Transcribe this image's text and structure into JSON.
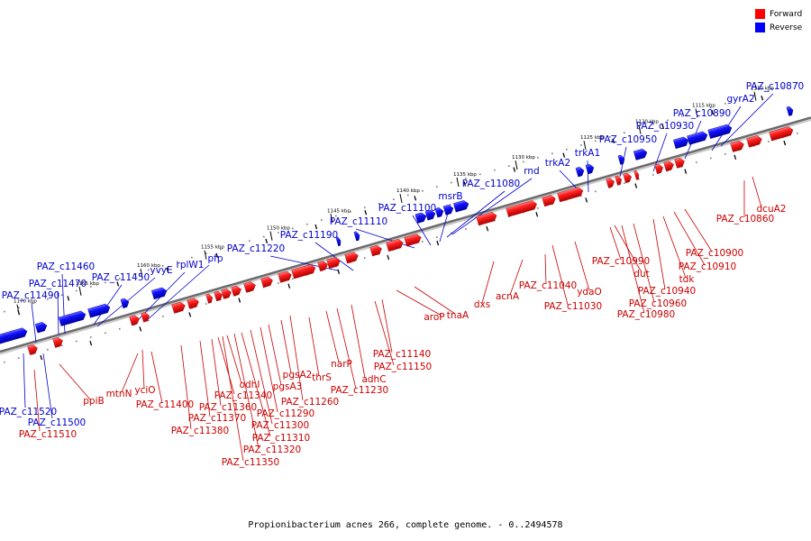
{
  "legend": {
    "forward_label": "Forward",
    "reverse_label": "Reverse",
    "forward_color": "#ff0000",
    "reverse_color": "#0000ff"
  },
  "footer": "Propionibacterium acnes 266, complete genome. - 0..2494578",
  "kbp_ticks": [
    "1110 kbp",
    "1115 kbp",
    "1120 kbp",
    "1125 kbp",
    "1130 kbp",
    "1135 kbp",
    "1140 kbp",
    "1145 kbp",
    "1150 kbp",
    "1155 kbp",
    "1160 kbp",
    "1165 kbp",
    "1170 kbp"
  ],
  "reverse_genes": [
    "PAZ_c10870",
    "gyrA2",
    "PAZ_c10890",
    "PAZ_c10930",
    "PAZ_c10950",
    "trkA1",
    "trkA2",
    "rnd",
    "PAZ_c11080",
    "msrB",
    "PAZ_c11100",
    "PAZ_c11110",
    "PAZ_c11190",
    "PAZ_c11220",
    "pfp",
    "rplW1",
    "yvyE",
    "PAZ_c11450",
    "PAZ_c11460",
    "PAZ_c11470",
    "PAZ_c11490",
    "PAZ_c11520",
    "PAZ_c11500"
  ],
  "forward_genes": [
    "dcuA2",
    "PAZ_c10860",
    "PAZ_c10900",
    "PAZ_c10910",
    "tdk",
    "PAZ_c10940",
    "PAZ_c10960",
    "PAZ_c10980",
    "dut",
    "PAZ_c10990",
    "ydaO",
    "PAZ_c11030",
    "PAZ_c11040",
    "acnA",
    "dxs",
    "tnaA",
    "aroP",
    "PAZ_c11140",
    "PAZ_c11150",
    "adhC",
    "PAZ_c11230",
    "narP",
    "thrS",
    "PAZ_c11260",
    "pgsA2",
    "pgsA3",
    "PAZ_c11290",
    "PAZ_c11300",
    "PAZ_c11310",
    "PAZ_c11320",
    "PAZ_c11350",
    "odhI",
    "PAZ_c11340",
    "PAZ_c11360",
    "PAZ_c11370",
    "PAZ_c11380",
    "PAZ_c11400",
    "yciO",
    "mtnN",
    "ppiB",
    "PAZ_c11510"
  ]
}
